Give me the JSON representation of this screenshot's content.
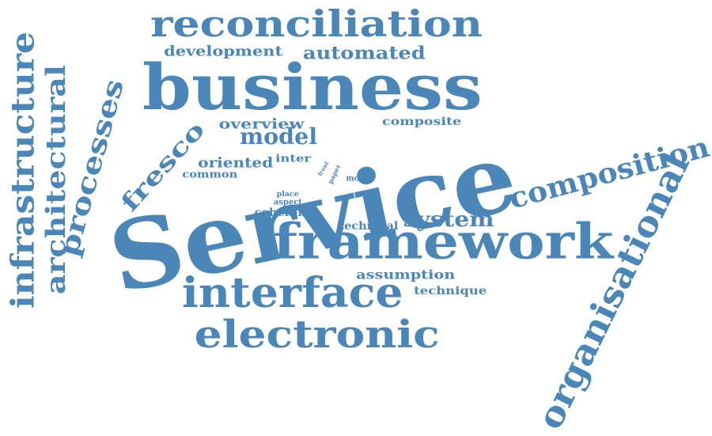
{
  "colors": {
    "text": "#4a86b8",
    "background": "#ffffff"
  },
  "words": {
    "service": "Service",
    "business": "business",
    "framework": "framework",
    "reconciliation": "reconciliation",
    "interface": "interface",
    "electronic": "electronic",
    "organisational": "organisational",
    "composition": "composition",
    "infrastructure": "infrastructure",
    "architectural": "architectural",
    "processes": "processes",
    "model": "model",
    "system": "system",
    "fresco": "fresco",
    "development": "development",
    "automated": "automated",
    "overview": "overview",
    "composite": "composite",
    "oriented": "oriented",
    "common": "common",
    "inter": "inter",
    "front": "front",
    "paper": "paper",
    "more": "more",
    "place": "place",
    "aspect": "aspect",
    "coherent": "coherent",
    "technical": "technical",
    "assumption": "assumption",
    "technique": "technique"
  }
}
